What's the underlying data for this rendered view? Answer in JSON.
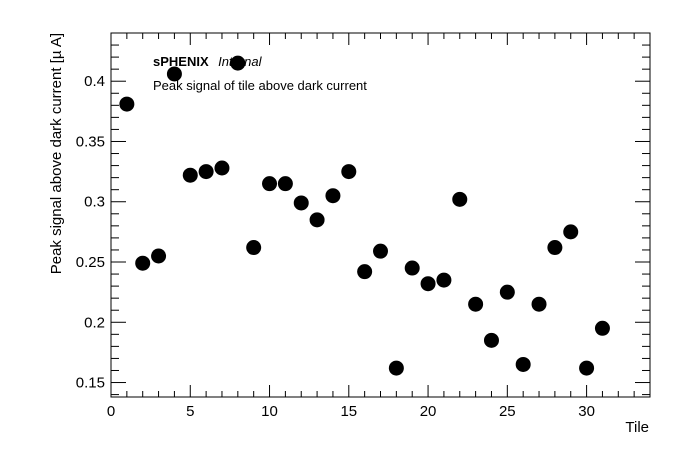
{
  "chart_data": {
    "type": "scatter",
    "title": "",
    "xlabel": "Tile",
    "ylabel": "Peak signal above dark current [µ A]",
    "xlim": [
      0,
      34
    ],
    "ylim": [
      0.138,
      0.44
    ],
    "x_ticks": [
      0,
      5,
      10,
      15,
      20,
      25,
      30
    ],
    "x_tick_labels": [
      "0",
      "5",
      "10",
      "15",
      "20",
      "25",
      "30"
    ],
    "y_ticks": [
      0.15,
      0.2,
      0.25,
      0.3,
      0.35,
      0.4
    ],
    "y_tick_labels": [
      "0.15",
      "0.2",
      "0.25",
      "0.3",
      "0.35",
      "0.4"
    ],
    "grid": false,
    "marker_color": "#000000",
    "annotations": {
      "experiment": "sPHENIX",
      "status": "Internal",
      "description": "Peak signal of tile above dark current"
    },
    "series": [
      {
        "x": [
          1,
          2,
          3,
          4,
          5,
          6,
          7,
          8,
          9,
          10,
          11,
          12,
          13,
          14,
          15,
          16,
          17,
          18,
          19,
          20,
          21,
          22,
          23,
          24,
          25,
          26,
          27,
          28,
          29,
          30,
          31
        ],
        "y": [
          0.381,
          0.249,
          0.255,
          0.406,
          0.322,
          0.325,
          0.328,
          0.415,
          0.262,
          0.315,
          0.315,
          0.299,
          0.285,
          0.305,
          0.325,
          0.242,
          0.259,
          0.162,
          0.245,
          0.232,
          0.235,
          0.302,
          0.215,
          0.185,
          0.225,
          0.165,
          0.215,
          0.262,
          0.275,
          0.162,
          0.195
        ]
      }
    ]
  }
}
